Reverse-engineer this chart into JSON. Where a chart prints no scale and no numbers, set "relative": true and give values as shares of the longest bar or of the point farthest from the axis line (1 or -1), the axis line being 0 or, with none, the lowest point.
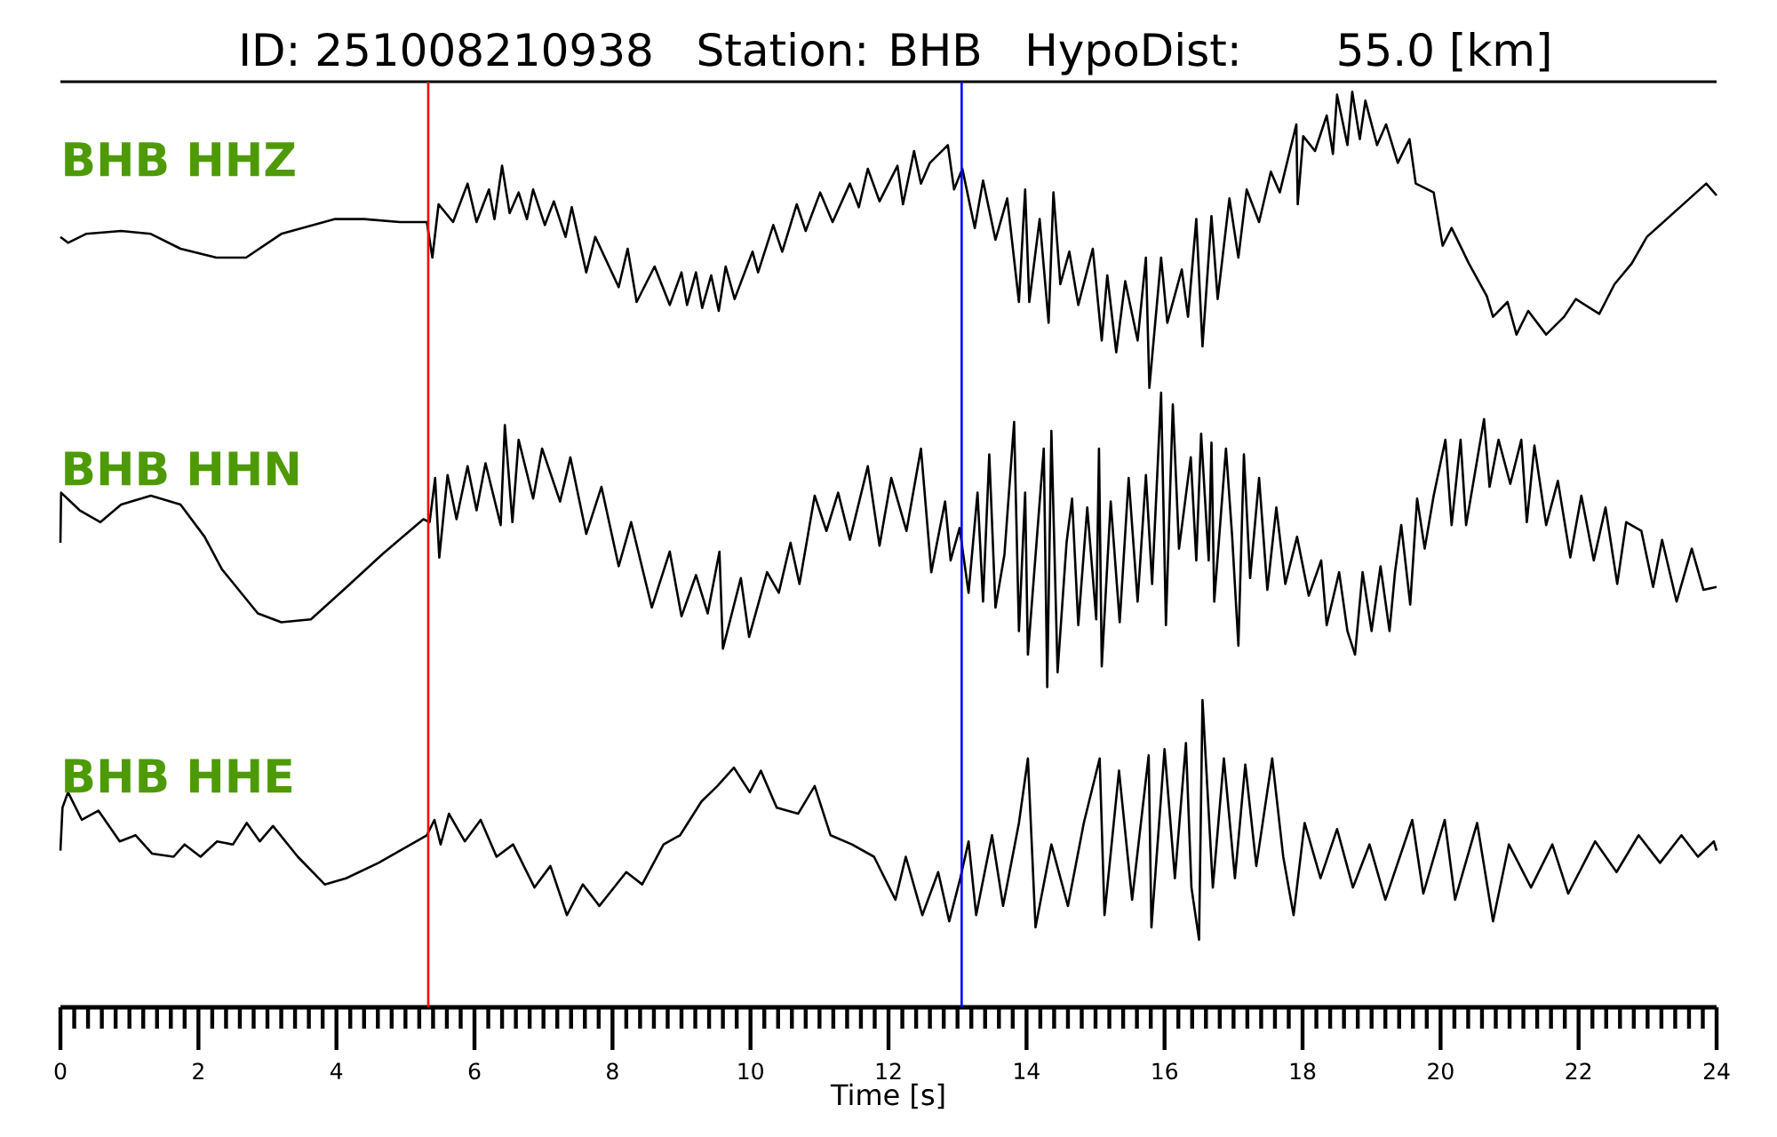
{
  "chart_data": [
    {
      "type": "line",
      "title": "ID: 251008210938   Station: BHB   HypoDist:     55.0 [km]",
      "relative": true,
      "xlim": [
        0,
        24
      ],
      "tick_labels": false,
      "x": [
        0,
        0.11,
        0.37,
        0.88,
        1.31,
        1.74,
        2.26,
        2.69,
        3.2,
        3.97,
        4.4,
        4.92,
        5.31,
        5.39,
        5.48,
        5.69,
        5.9,
        6.03,
        6.21,
        6.29,
        6.4,
        6.51,
        6.64,
        6.76,
        6.85,
        7.02,
        7.15,
        7.32,
        7.41,
        7.62,
        7.75,
        8.09,
        8.22,
        8.35,
        8.61,
        8.83,
        9.0,
        9.08,
        9.21,
        9.3,
        9.43,
        9.54,
        9.64,
        9.77,
        10.03,
        10.11,
        10.33,
        10.46,
        10.67,
        10.8,
        11.01,
        11.19,
        11.44,
        11.57,
        11.7,
        11.87,
        12.13,
        12.21,
        12.37,
        12.47,
        12.6,
        12.86,
        12.95,
        13.07,
        13.25,
        13.37,
        13.55,
        13.72,
        13.89,
        13.98,
        14.04,
        14.19,
        14.32,
        14.39,
        14.49,
        14.62,
        14.75,
        14.96,
        15.09,
        15.17,
        15.3,
        15.43,
        15.61,
        15.73,
        15.78,
        15.95,
        16.04,
        16.25,
        16.34,
        16.46,
        16.55,
        16.68,
        16.77,
        16.94,
        17.07,
        17.19,
        17.37,
        17.54,
        17.67,
        17.91,
        17.93,
        18.01,
        18.18,
        18.35,
        18.44,
        18.5,
        18.65,
        18.72,
        18.83,
        18.91,
        19.08,
        19.21,
        19.38,
        19.55,
        19.64,
        19.9,
        20.03,
        20.16,
        20.41,
        20.67,
        20.76,
        20.97,
        21.1,
        21.27,
        21.53,
        21.79,
        21.96,
        22.3,
        22.52,
        22.77,
        22.99,
        23.42,
        23.85,
        24
      ],
      "series": [
        {
          "name": "BHB HHZ",
          "color": "#000000",
          "values": [
            0.51,
            0.49,
            0.52,
            0.53,
            0.52,
            0.47,
            0.44,
            0.44,
            0.52,
            0.57,
            0.57,
            0.56,
            0.56,
            0.44,
            0.62,
            0.56,
            0.69,
            0.56,
            0.67,
            0.57,
            0.75,
            0.59,
            0.66,
            0.57,
            0.67,
            0.55,
            0.63,
            0.51,
            0.61,
            0.39,
            0.51,
            0.34,
            0.47,
            0.29,
            0.41,
            0.28,
            0.39,
            0.28,
            0.39,
            0.27,
            0.38,
            0.26,
            0.41,
            0.3,
            0.46,
            0.39,
            0.55,
            0.46,
            0.62,
            0.53,
            0.66,
            0.56,
            0.69,
            0.61,
            0.74,
            0.63,
            0.75,
            0.62,
            0.8,
            0.69,
            0.76,
            0.82,
            0.67,
            0.74,
            0.54,
            0.7,
            0.5,
            0.64,
            0.29,
            0.67,
            0.29,
            0.57,
            0.22,
            0.66,
            0.35,
            0.46,
            0.28,
            0.47,
            0.16,
            0.38,
            0.12,
            0.36,
            0.16,
            0.44,
            0,
            0.44,
            0.22,
            0.4,
            0.24,
            0.57,
            0.14,
            0.58,
            0.3,
            0.64,
            0.44,
            0.67,
            0.56,
            0.73,
            0.66,
            0.89,
            0.62,
            0.85,
            0.8,
            0.92,
            0.79,
            0.99,
            0.82,
            1,
            0.84,
            0.97,
            0.82,
            0.89,
            0.76,
            0.84,
            0.69,
            0.66,
            0.48,
            0.54,
            0.42,
            0.31,
            0.24,
            0.29,
            0.18,
            0.26,
            0.18,
            0.24,
            0.3,
            0.25,
            0.35,
            0.42,
            0.51,
            0.6,
            0.69,
            0.65
          ]
        }
      ],
      "ref_lines": [
        {
          "axis": "x",
          "value": 5.33,
          "color": "#ff0000"
        },
        {
          "axis": "x",
          "value": 13.06,
          "color": "#0000ff"
        }
      ]
    },
    {
      "type": "line",
      "relative": true,
      "xlim": [
        0,
        24
      ],
      "tick_labels": false,
      "x": [
        0,
        0.01,
        0.28,
        0.58,
        0.88,
        1.31,
        1.74,
        2.09,
        2.34,
        2.86,
        3.2,
        3.63,
        4.15,
        4.66,
        5.26,
        5.35,
        5.43,
        5.49,
        5.61,
        5.74,
        5.9,
        6.03,
        6.16,
        6.38,
        6.44,
        6.55,
        6.64,
        6.85,
        6.98,
        7.24,
        7.39,
        7.62,
        7.84,
        8.09,
        8.27,
        8.57,
        8.83,
        9.0,
        9.21,
        9.38,
        9.55,
        9.6,
        9.86,
        9.98,
        10.24,
        10.41,
        10.58,
        10.71,
        10.93,
        11.1,
        11.27,
        11.44,
        11.7,
        11.87,
        12.04,
        12.26,
        12.47,
        12.62,
        12.82,
        12.9,
        13.03,
        13.16,
        13.29,
        13.37,
        13.46,
        13.55,
        13.68,
        13.82,
        13.89,
        13.98,
        14.02,
        14.25,
        14.3,
        14.36,
        14.45,
        14.58,
        14.66,
        14.75,
        14.88,
        15.01,
        15.05,
        15.09,
        15.22,
        15.35,
        15.48,
        15.61,
        15.73,
        15.82,
        15.95,
        16.02,
        16.12,
        16.21,
        16.38,
        16.46,
        16.53,
        16.64,
        16.68,
        16.72,
        16.89,
        16.98,
        17.07,
        17.15,
        17.24,
        17.37,
        17.49,
        17.62,
        17.75,
        17.92,
        18.09,
        18.27,
        18.35,
        18.53,
        18.65,
        18.76,
        18.87,
        19.0,
        19.13,
        19.26,
        19.34,
        19.43,
        19.56,
        19.66,
        19.77,
        19.9,
        20.07,
        20.16,
        20.29,
        20.37,
        20.63,
        20.71,
        20.84,
        21.01,
        21.17,
        21.25,
        21.36,
        21.53,
        21.7,
        21.88,
        22.04,
        22.22,
        22.39,
        22.56,
        22.69,
        22.91,
        23.08,
        23.21,
        23.42,
        23.64,
        23.81,
        24
      ],
      "series": [
        {
          "name": "BHB HHN",
          "color": "#000000",
          "values": [
            0.49,
            0.66,
            0.6,
            0.56,
            0.62,
            0.65,
            0.62,
            0.51,
            0.4,
            0.25,
            0.22,
            0.23,
            0.34,
            0.45,
            0.57,
            0.56,
            0.71,
            0.44,
            0.72,
            0.57,
            0.75,
            0.6,
            0.76,
            0.55,
            0.89,
            0.56,
            0.84,
            0.64,
            0.81,
            0.63,
            0.78,
            0.52,
            0.68,
            0.41,
            0.56,
            0.27,
            0.46,
            0.24,
            0.38,
            0.25,
            0.46,
            0.13,
            0.37,
            0.17,
            0.39,
            0.32,
            0.49,
            0.35,
            0.65,
            0.53,
            0.66,
            0.5,
            0.75,
            0.48,
            0.71,
            0.53,
            0.81,
            0.39,
            0.63,
            0.43,
            0.54,
            0.32,
            0.66,
            0.29,
            0.79,
            0.27,
            0.45,
            0.9,
            0.19,
            0.66,
            0.11,
            0.81,
            0,
            0.87,
            0.05,
            0.49,
            0.64,
            0.21,
            0.61,
            0.23,
            0.81,
            0.07,
            0.63,
            0.22,
            0.71,
            0.29,
            0.72,
            0.35,
            1,
            0.21,
            0.96,
            0.47,
            0.78,
            0.43,
            0.86,
            0.43,
            0.83,
            0.29,
            0.81,
            0.51,
            0.14,
            0.79,
            0.37,
            0.71,
            0.33,
            0.61,
            0.35,
            0.51,
            0.31,
            0.43,
            0.21,
            0.39,
            0.19,
            0.11,
            0.39,
            0.19,
            0.41,
            0.19,
            0.39,
            0.55,
            0.28,
            0.64,
            0.47,
            0.65,
            0.84,
            0.55,
            0.84,
            0.55,
            0.91,
            0.68,
            0.84,
            0.69,
            0.84,
            0.56,
            0.82,
            0.55,
            0.7,
            0.44,
            0.65,
            0.43,
            0.61,
            0.35,
            0.56,
            0.53,
            0.34,
            0.5,
            0.29,
            0.47,
            0.33,
            0.34
          ]
        }
      ],
      "ref_lines": [
        {
          "axis": "x",
          "value": 5.33,
          "color": "#ff0000"
        },
        {
          "axis": "x",
          "value": 13.06,
          "color": "#0000ff"
        }
      ]
    },
    {
      "type": "line",
      "relative": true,
      "xlim": [
        0,
        24
      ],
      "tick_labels": "x",
      "xlabel": "Time [s]",
      "xticks": [
        0,
        {
          "value": 0.2,
          "label": null
        },
        {
          "value": 0.4,
          "label": null
        },
        {
          "value": 0.6,
          "label": null
        },
        {
          "value": 0.8,
          "label": null
        },
        {
          "value": 1,
          "label": null
        },
        {
          "value": 1.2,
          "label": null
        },
        {
          "value": 1.4,
          "label": null
        },
        {
          "value": 1.6,
          "label": null
        },
        {
          "value": 1.8,
          "label": null
        },
        2,
        {
          "value": 2.2,
          "label": null
        },
        {
          "value": 2.4,
          "label": null
        },
        {
          "value": 2.6,
          "label": null
        },
        {
          "value": 2.8,
          "label": null
        },
        {
          "value": 3,
          "label": null
        },
        {
          "value": 3.2,
          "label": null
        },
        {
          "value": 3.4,
          "label": null
        },
        {
          "value": 3.6,
          "label": null
        },
        {
          "value": 3.8,
          "label": null
        },
        4,
        {
          "value": 4.2,
          "label": null
        },
        {
          "value": 4.4,
          "label": null
        },
        {
          "value": 4.6,
          "label": null
        },
        {
          "value": 4.8,
          "label": null
        },
        {
          "value": 5,
          "label": null
        },
        {
          "value": 5.2,
          "label": null
        },
        {
          "value": 5.4,
          "label": null
        },
        {
          "value": 5.6,
          "label": null
        },
        {
          "value": 5.8,
          "label": null
        },
        6,
        {
          "value": 6.2,
          "label": null
        },
        {
          "value": 6.4,
          "label": null
        },
        {
          "value": 6.6,
          "label": null
        },
        {
          "value": 6.8,
          "label": null
        },
        {
          "value": 7,
          "label": null
        },
        {
          "value": 7.2,
          "label": null
        },
        {
          "value": 7.4,
          "label": null
        },
        {
          "value": 7.6,
          "label": null
        },
        {
          "value": 7.8,
          "label": null
        },
        8,
        {
          "value": 8.2,
          "label": null
        },
        {
          "value": 8.4,
          "label": null
        },
        {
          "value": 8.6,
          "label": null
        },
        {
          "value": 8.8,
          "label": null
        },
        {
          "value": 9,
          "label": null
        },
        {
          "value": 9.2,
          "label": null
        },
        {
          "value": 9.4,
          "label": null
        },
        {
          "value": 9.6,
          "label": null
        },
        {
          "value": 9.8,
          "label": null
        },
        10,
        {
          "value": 10.2,
          "label": null
        },
        {
          "value": 10.4,
          "label": null
        },
        {
          "value": 10.6,
          "label": null
        },
        {
          "value": 10.8,
          "label": null
        },
        {
          "value": 11,
          "label": null
        },
        {
          "value": 11.2,
          "label": null
        },
        {
          "value": 11.4,
          "label": null
        },
        {
          "value": 11.6,
          "label": null
        },
        {
          "value": 11.8,
          "label": null
        },
        12,
        {
          "value": 12.2,
          "label": null
        },
        {
          "value": 12.4,
          "label": null
        },
        {
          "value": 12.6,
          "label": null
        },
        {
          "value": 12.8,
          "label": null
        },
        {
          "value": 13,
          "label": null
        },
        {
          "value": 13.2,
          "label": null
        },
        {
          "value": 13.4,
          "label": null
        },
        {
          "value": 13.6,
          "label": null
        },
        {
          "value": 13.8,
          "label": null
        },
        14,
        {
          "value": 14.2,
          "label": null
        },
        {
          "value": 14.4,
          "label": null
        },
        {
          "value": 14.6,
          "label": null
        },
        {
          "value": 14.8,
          "label": null
        },
        {
          "value": 15,
          "label": null
        },
        {
          "value": 15.2,
          "label": null
        },
        {
          "value": 15.4,
          "label": null
        },
        {
          "value": 15.6,
          "label": null
        },
        {
          "value": 15.8,
          "label": null
        },
        16,
        {
          "value": 16.2,
          "label": null
        },
        {
          "value": 16.4,
          "label": null
        },
        {
          "value": 16.6,
          "label": null
        },
        {
          "value": 16.8,
          "label": null
        },
        {
          "value": 17,
          "label": null
        },
        {
          "value": 17.2,
          "label": null
        },
        {
          "value": 17.4,
          "label": null
        },
        {
          "value": 17.6,
          "label": null
        },
        {
          "value": 17.8,
          "label": null
        },
        18,
        {
          "value": 18.2,
          "label": null
        },
        {
          "value": 18.4,
          "label": null
        },
        {
          "value": 18.6,
          "label": null
        },
        {
          "value": 18.8,
          "label": null
        },
        {
          "value": 19,
          "label": null
        },
        {
          "value": 19.2,
          "label": null
        },
        {
          "value": 19.4,
          "label": null
        },
        {
          "value": 19.6,
          "label": null
        },
        {
          "value": 19.8,
          "label": null
        },
        20,
        {
          "value": 20.2,
          "label": null
        },
        {
          "value": 20.4,
          "label": null
        },
        {
          "value": 20.6,
          "label": null
        },
        {
          "value": 20.8,
          "label": null
        },
        {
          "value": 21,
          "label": null
        },
        {
          "value": 21.2,
          "label": null
        },
        {
          "value": 21.4,
          "label": null
        },
        {
          "value": 21.6,
          "label": null
        },
        {
          "value": 21.8,
          "label": null
        },
        22,
        {
          "value": 22.2,
          "label": null
        },
        {
          "value": 22.4,
          "label": null
        },
        {
          "value": 22.6,
          "label": null
        },
        {
          "value": 22.8,
          "label": null
        },
        {
          "value": 23,
          "label": null
        },
        {
          "value": 23.2,
          "label": null
        },
        {
          "value": 23.4,
          "label": null
        },
        {
          "value": 23.6,
          "label": null
        },
        {
          "value": 23.8,
          "label": null
        },
        24
      ],
      "x": [
        0,
        0.03,
        0.11,
        0.31,
        0.55,
        0.86,
        1.09,
        1.33,
        1.64,
        1.8,
        2.03,
        2.27,
        2.5,
        2.7,
        2.89,
        3.08,
        3.44,
        3.83,
        4.14,
        4.61,
        5.31,
        5.42,
        5.51,
        5.63,
        5.86,
        6.09,
        6.32,
        6.56,
        6.87,
        7.1,
        7.34,
        7.57,
        7.81,
        8.2,
        8.43,
        8.74,
        8.98,
        9.29,
        9.52,
        9.76,
        9.99,
        10.15,
        10.38,
        10.69,
        10.93,
        11.16,
        11.47,
        11.79,
        12.1,
        12.25,
        12.49,
        12.72,
        12.88,
        13.04,
        13.16,
        13.27,
        13.5,
        13.66,
        13.89,
        14.02,
        14.13,
        14.36,
        14.6,
        14.83,
        15.06,
        15.13,
        15.34,
        15.53,
        15.77,
        15.81,
        16.0,
        16.15,
        16.31,
        16.39,
        16.5,
        16.55,
        16.7,
        16.86,
        17.02,
        17.17,
        17.33,
        17.56,
        17.72,
        17.87,
        18.03,
        18.26,
        18.5,
        18.73,
        18.97,
        19.2,
        19.59,
        19.75,
        20.06,
        20.21,
        20.53,
        20.76,
        20.99,
        21.31,
        21.62,
        21.85,
        22.24,
        22.55,
        22.87,
        23.18,
        23.49,
        23.73,
        23.96,
        24
      ],
      "series": [
        {
          "name": "BHB HHE",
          "color": "#000000",
          "values": [
            0.51,
            0.65,
            0.7,
            0.61,
            0.64,
            0.54,
            0.56,
            0.5,
            0.49,
            0.53,
            0.49,
            0.54,
            0.53,
            0.6,
            0.54,
            0.59,
            0.49,
            0.4,
            0.42,
            0.47,
            0.56,
            0.61,
            0.53,
            0.63,
            0.54,
            0.61,
            0.49,
            0.53,
            0.39,
            0.46,
            0.3,
            0.4,
            0.33,
            0.44,
            0.4,
            0.53,
            0.56,
            0.67,
            0.72,
            0.78,
            0.7,
            0.77,
            0.65,
            0.63,
            0.72,
            0.56,
            0.53,
            0.49,
            0.35,
            0.49,
            0.3,
            0.44,
            0.28,
            0.42,
            0.54,
            0.3,
            0.56,
            0.33,
            0.6,
            0.81,
            0.26,
            0.53,
            0.33,
            0.6,
            0.81,
            0.3,
            0.77,
            0.35,
            0.82,
            0.26,
            0.84,
            0.42,
            0.86,
            0.39,
            0.22,
            1,
            0.39,
            0.81,
            0.42,
            0.79,
            0.46,
            0.81,
            0.49,
            0.3,
            0.6,
            0.42,
            0.58,
            0.39,
            0.53,
            0.35,
            0.61,
            0.37,
            0.61,
            0.35,
            0.6,
            0.28,
            0.53,
            0.39,
            0.53,
            0.37,
            0.54,
            0.44,
            0.56,
            0.47,
            0.56,
            0.49,
            0.54,
            0.51
          ]
        }
      ],
      "ref_lines": [
        {
          "axis": "x",
          "value": 5.33,
          "color": "#ff0000"
        },
        {
          "axis": "x",
          "value": 13.06,
          "color": "#0000ff"
        }
      ]
    }
  ]
}
